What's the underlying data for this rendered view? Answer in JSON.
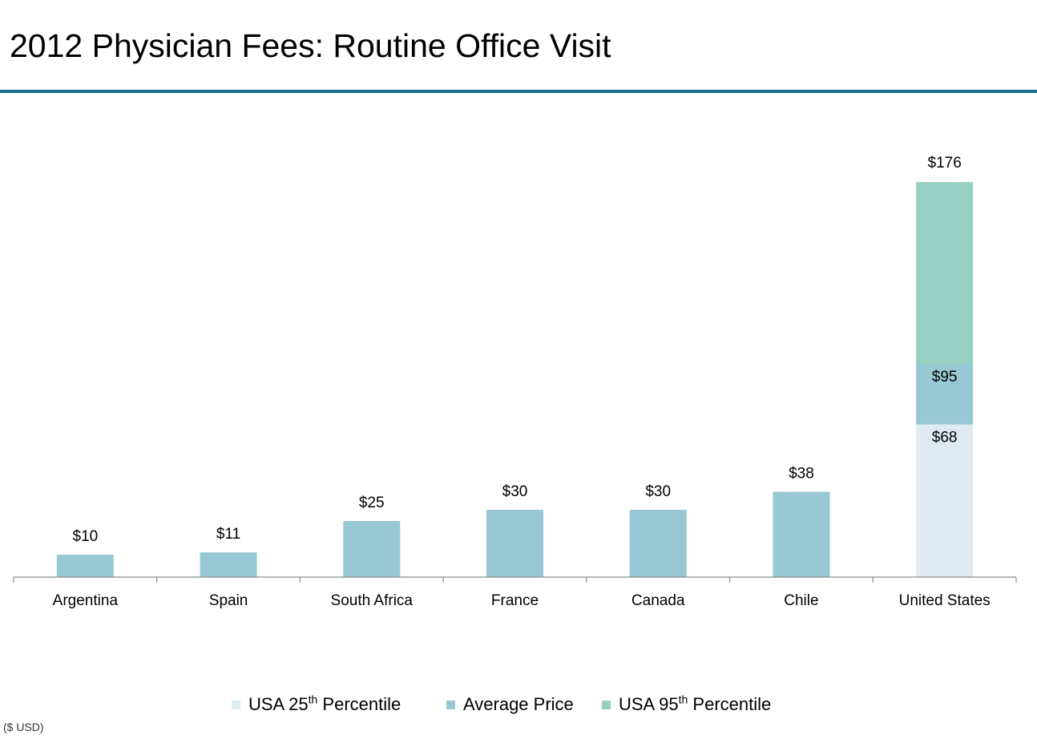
{
  "page": {
    "title": "2012 Physician Fees: Routine Office Visit",
    "unit_note": "($ USD)",
    "accent_color": "#1b6d8c"
  },
  "legend": [
    {
      "label": "USA 25",
      "sup": "th",
      "suffix": " Percentile",
      "color": "#dfebf0"
    },
    {
      "label": "Average Price",
      "sup": "",
      "suffix": "",
      "color": "#98c8d3"
    },
    {
      "label": "USA  95",
      "sup": "th",
      "suffix": " Percentile",
      "color": "#97cfc2"
    }
  ],
  "chart_data": {
    "type": "bar",
    "title": "2012 Physician Fees: Routine Office Visit",
    "xlabel": "",
    "ylabel": "",
    "unit": "$ USD",
    "ylim": [
      0,
      176
    ],
    "grid": false,
    "legend_position": "bottom",
    "categories": [
      "Argentina",
      "Spain",
      "South Africa",
      "France",
      "Canada",
      "Chile",
      "United States"
    ],
    "series": [
      {
        "name": "Average Price",
        "color": "#98c8d3",
        "values": [
          10,
          11,
          25,
          30,
          30,
          38,
          null
        ],
        "labels": [
          "$10",
          "$11",
          "$25",
          "$30",
          "$30",
          "$38",
          null
        ]
      }
    ],
    "us_stack": {
      "category": "United States",
      "segments": [
        {
          "name": "USA 25th Percentile",
          "value": 68,
          "label": "$68",
          "color": "#dfebf0"
        },
        {
          "name": "Average Price",
          "value": 95,
          "label": "$95",
          "color": "#98c8d3"
        },
        {
          "name": "USA 95th Percentile",
          "value": 176,
          "label": "$176",
          "color": "#97cfc2"
        }
      ]
    }
  }
}
